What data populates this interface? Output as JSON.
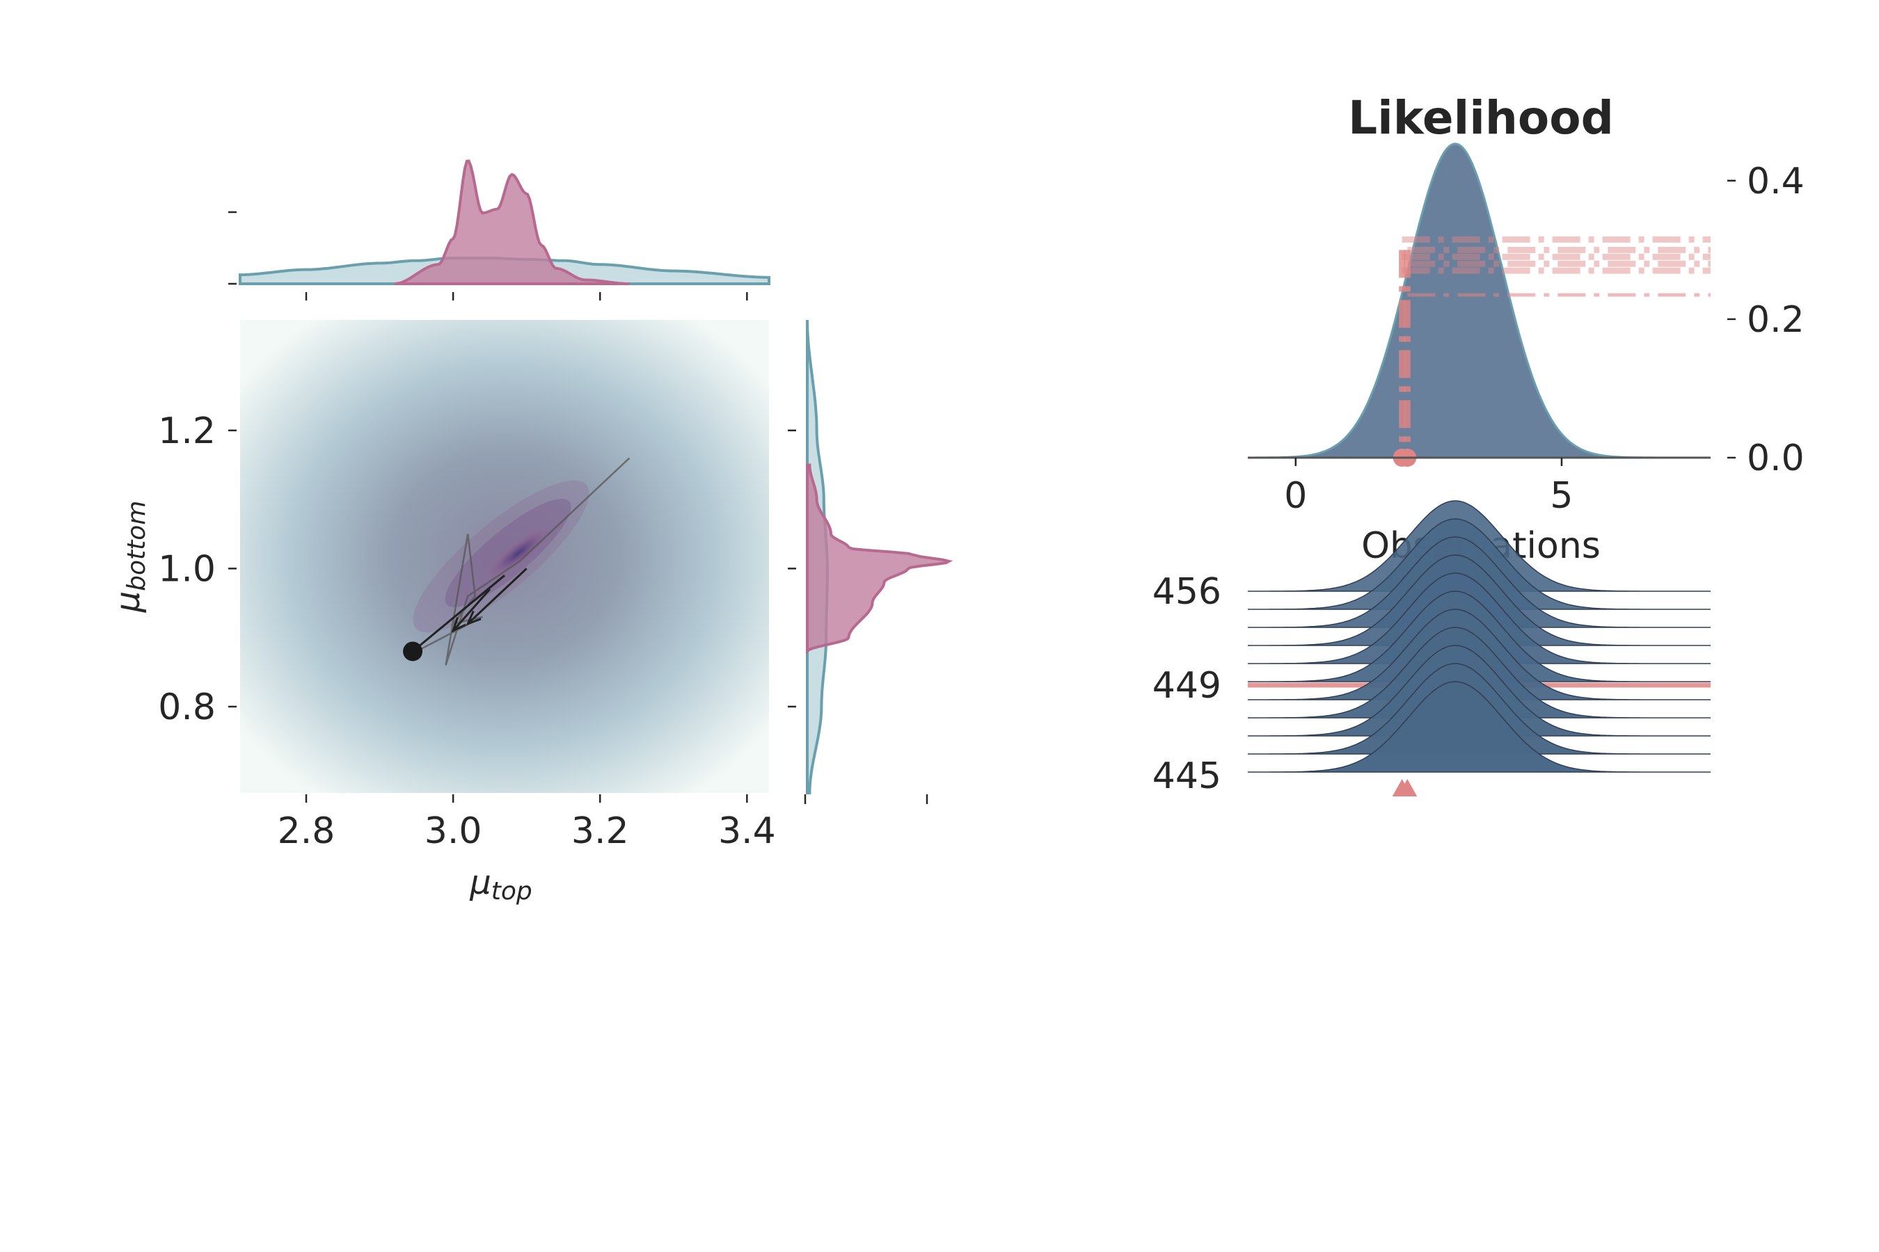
{
  "colors": {
    "posterior": "#b8698f",
    "posterior_fill": "#c07e9e",
    "prior": "#6aa0ae",
    "prior_fill": "#b7d3da",
    "likelihood_fill": "#5c7594",
    "ridge_fill": "#4a6888",
    "observation": "#e08585",
    "text": "#262626"
  },
  "chart_data": [
    {
      "type": "scatter",
      "panel": "joint posterior",
      "xlabel_main": "μ",
      "xlabel_sub": "top",
      "ylabel_main": "μ",
      "ylabel_sub": "bottom",
      "xlim": [
        2.71,
        3.43
      ],
      "ylim": [
        0.675,
        1.36
      ],
      "x_ticks": [
        "2.8",
        "3.0",
        "3.2",
        "3.4"
      ],
      "x_tick_values": [
        2.8,
        3.0,
        3.2,
        3.4
      ],
      "y_ticks": [
        "0.8",
        "1.0",
        "1.2"
      ],
      "y_tick_values": [
        0.8,
        1.0,
        1.2
      ],
      "background": "prior density (mean 3.08, 1.02)",
      "trace": [
        {
          "x": 3.24,
          "y": 1.16
        },
        {
          "x": 3.09,
          "y": 1.01
        },
        {
          "x": 3.02,
          "y": 0.96
        },
        {
          "x": 2.99,
          "y": 0.86
        },
        {
          "x": 3.02,
          "y": 1.05
        },
        {
          "x": 3.03,
          "y": 0.96
        },
        {
          "x": 3.0,
          "y": 0.92
        },
        {
          "x": 3.04,
          "y": 0.93
        },
        {
          "x": 2.95,
          "y": 0.88
        }
      ],
      "arrows": [
        {
          "from": [
            3.1,
            1.0
          ],
          "to": [
            3.02,
            0.92
          ]
        },
        {
          "from": [
            3.05,
            0.97
          ],
          "to": [
            3.0,
            0.91
          ]
        }
      ],
      "current_point": {
        "x": 2.945,
        "y": 0.88
      }
    },
    {
      "type": "area",
      "panel": "marginal mu_top",
      "x_ticks": [
        2.8,
        3.0,
        3.2,
        3.4
      ],
      "series": [
        {
          "x": [
            2.71,
            2.8,
            2.9,
            2.95,
            3.0,
            3.05,
            3.1,
            3.15,
            3.2,
            3.3,
            3.43
          ],
          "values": [
            0.07,
            0.11,
            0.16,
            0.18,
            0.2,
            0.2,
            0.19,
            0.18,
            0.15,
            0.1,
            0.05
          ]
        },
        {
          "x": [
            2.92,
            2.98,
            3.0,
            3.02,
            3.04,
            3.06,
            3.08,
            3.1,
            3.12,
            3.14,
            3.18,
            3.24
          ],
          "values": [
            0.0,
            0.15,
            0.35,
            0.96,
            0.55,
            0.58,
            0.85,
            0.7,
            0.3,
            0.12,
            0.03,
            0.0
          ]
        }
      ]
    },
    {
      "type": "area",
      "panel": "marginal mu_bottom",
      "series": [
        {
          "y": [
            0.675,
            0.8,
            0.9,
            1.0,
            1.1,
            1.2,
            1.36
          ],
          "values": [
            0.02,
            0.12,
            0.16,
            0.17,
            0.14,
            0.08,
            0.0
          ]
        },
        {
          "y": [
            0.88,
            0.9,
            0.95,
            0.98,
            1.0,
            1.01,
            1.02,
            1.03,
            1.05,
            1.1,
            1.15
          ],
          "values": [
            0.0,
            0.35,
            0.55,
            0.65,
            0.85,
            1.2,
            0.9,
            0.35,
            0.2,
            0.08,
            0.02
          ]
        }
      ]
    },
    {
      "type": "area",
      "panel": "likelihood",
      "title": "Likelihood",
      "xlabel": "Observations",
      "x_ticks": [
        0,
        5
      ],
      "xlim": [
        -0.9,
        7.8
      ],
      "y_ticks": [
        "0.0",
        "0.2",
        "0.4"
      ],
      "y_tick_values": [
        0.0,
        0.2,
        0.4
      ],
      "ylim": [
        0,
        0.455
      ],
      "likelihood": {
        "mean": 3.0,
        "sd": 0.88
      },
      "observations": [
        2.0,
        2.1
      ],
      "dashdot_levels": [
        0.315,
        0.3,
        0.29,
        0.28,
        0.27,
        0.235
      ]
    },
    {
      "type": "area",
      "panel": "likelihood ridgeline",
      "y_ticks": [
        "456",
        "449",
        "445"
      ],
      "ridges": 11,
      "mean": 3.0,
      "sd": 0.88,
      "observation_marker": 2.1
    }
  ]
}
